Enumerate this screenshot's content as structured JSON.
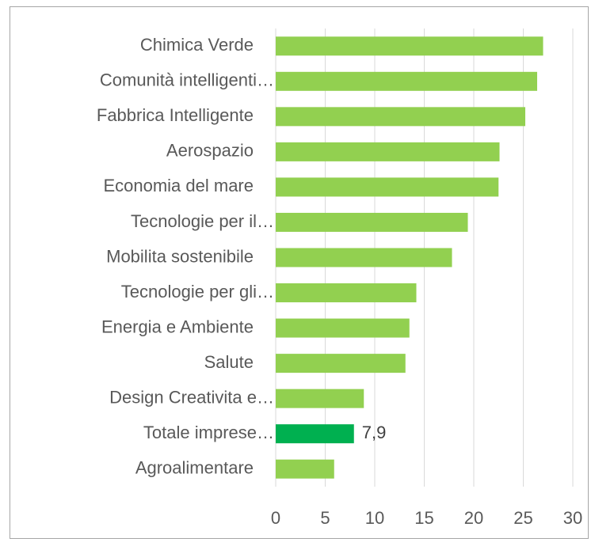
{
  "chart_data": {
    "type": "barh",
    "categories": [
      "Chimica Verde",
      "Comunità intelligenti…",
      "Fabbrica Intelligente",
      "Aerospazio",
      "Economia del mare",
      "Tecnologie per il…",
      "Mobilita sostenibile",
      "Tecnologie per gli…",
      "Energia e Ambiente",
      "Salute",
      "Design Creativita e…",
      "Totale imprese…",
      "Agroalimentare"
    ],
    "values": [
      27.0,
      26.4,
      25.2,
      22.6,
      22.5,
      19.4,
      17.8,
      14.2,
      13.5,
      13.1,
      8.9,
      7.9,
      5.9
    ],
    "value_labels": [
      null,
      null,
      null,
      null,
      null,
      null,
      null,
      null,
      null,
      null,
      null,
      "7,9",
      null
    ],
    "colors": [
      "#92d050",
      "#92d050",
      "#92d050",
      "#92d050",
      "#92d050",
      "#92d050",
      "#92d050",
      "#92d050",
      "#92d050",
      "#92d050",
      "#92d050",
      "#00b050",
      "#92d050"
    ],
    "xlim": [
      0,
      30
    ],
    "xticks": [
      0,
      5,
      10,
      15,
      20,
      25,
      30
    ],
    "grid": true
  }
}
